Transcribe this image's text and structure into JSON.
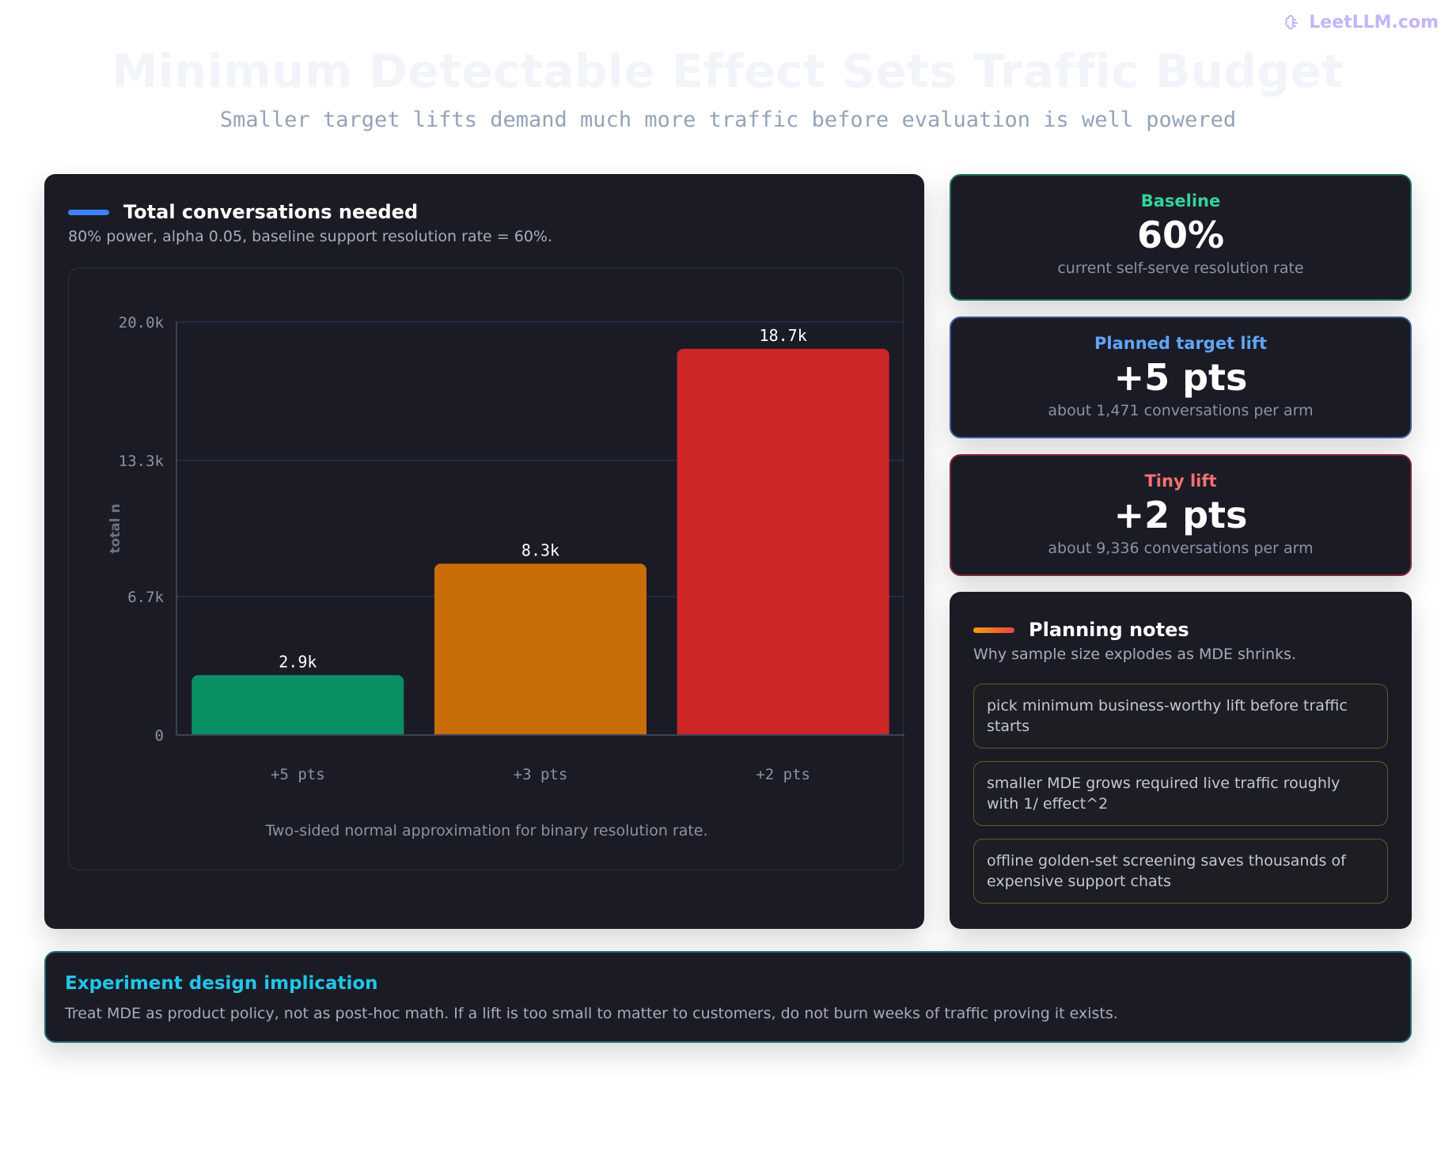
{
  "brand": {
    "name": "LeetLLM.com",
    "icon": "brain-icon",
    "color": "#c4b5fd"
  },
  "page": {
    "title": "Minimum Detectable Effect Sets Traffic Budget",
    "subtitle": "Smaller target lifts demand much more traffic before evaluation is well powered"
  },
  "chart_panel": {
    "title": "Total conversations needed",
    "description": "80% power, alpha 0.05, baseline support resolution rate = 60%.",
    "footnote": "Two-sided normal approximation for binary resolution rate.",
    "accent_color": "#3b82f6"
  },
  "chart_data": {
    "type": "bar",
    "categories": [
      "+5 pts",
      "+3 pts",
      "+2 pts"
    ],
    "values": [
      2900,
      8300,
      18700
    ],
    "value_labels": [
      "2.9k",
      "8.3k",
      "18.7k"
    ],
    "colors": [
      "#0a8f63",
      "#c96d09",
      "#cc2626"
    ],
    "ylabel": "total n",
    "ylim": [
      0,
      20000
    ],
    "yticks": [
      0,
      6700,
      13300,
      20000
    ],
    "ytick_labels": [
      "0",
      "6.7k",
      "13.3k",
      "20.0k"
    ],
    "grid": true,
    "legend": "none"
  },
  "stats": [
    {
      "label": "Baseline",
      "value": "60%",
      "note": "current self-serve resolution rate",
      "color": "#34d399",
      "border": "#1f6f5a"
    },
    {
      "label": "Planned target lift",
      "value": "+5 pts",
      "note": "about 1,471 conversations per arm",
      "color": "#60a5fa",
      "border": "#3a5a9a"
    },
    {
      "label": "Tiny lift",
      "value": "+2 pts",
      "note": "about 9,336 conversations per arm",
      "color": "#f87171",
      "border": "#7a2a36"
    }
  ],
  "notes_panel": {
    "title": "Planning notes",
    "description": "Why sample size explodes as MDE shrinks.",
    "accent_color": "#f97316",
    "items": [
      "pick minimum business-worthy lift before traffic starts",
      "smaller MDE grows required live traffic roughly with 1/ effect^2",
      "offline golden-set screening saves thousands of expensive support chats"
    ]
  },
  "implication": {
    "title": "Experiment design implication",
    "body": "Treat MDE as product policy, not as post-hoc math. If a lift is too small to matter to customers, do not burn weeks of traffic proving it exists."
  }
}
